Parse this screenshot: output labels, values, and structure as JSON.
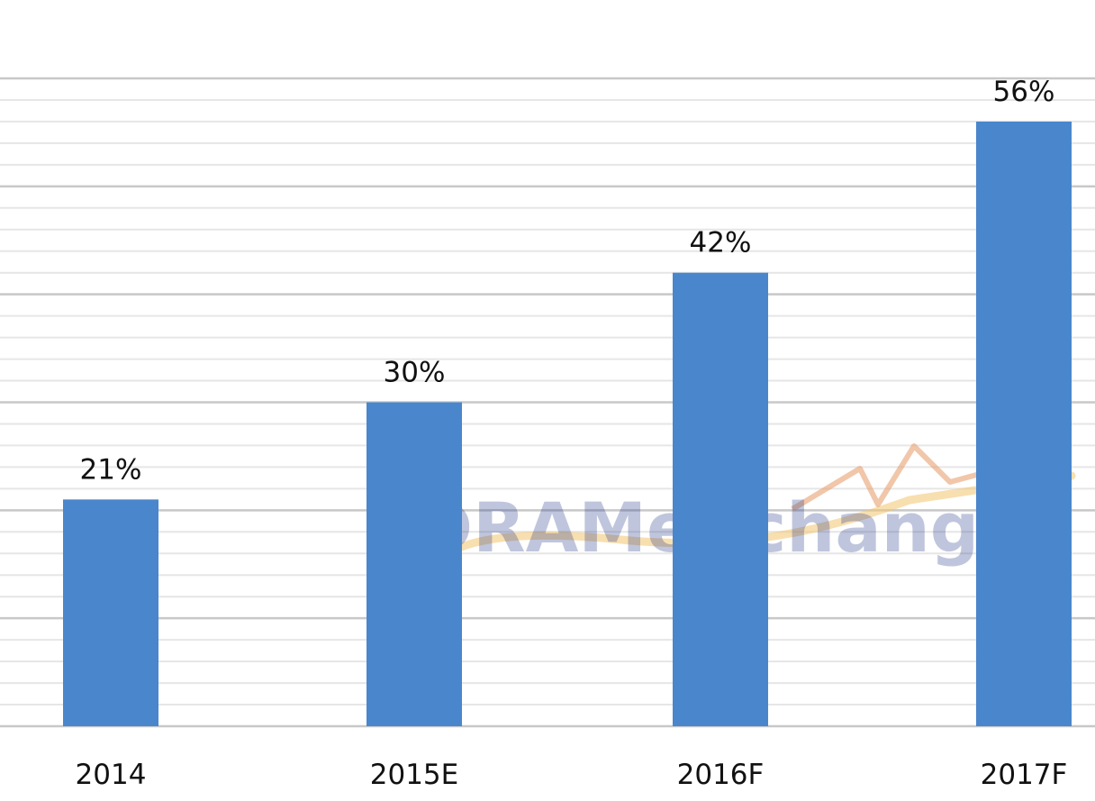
{
  "chart_data": {
    "type": "bar",
    "categories": [
      "2014",
      "2015E",
      "2016F",
      "2017F"
    ],
    "values": [
      21,
      30,
      42,
      56
    ],
    "value_labels": [
      "21%",
      "30%",
      "42%",
      "56%"
    ],
    "title": "",
    "xlabel": "",
    "ylabel": "",
    "ylim": [
      0,
      60
    ],
    "grid": true,
    "legend": "none",
    "bar_color": "#4a86cc"
  },
  "watermark": {
    "text": "DRAMeXchange"
  }
}
